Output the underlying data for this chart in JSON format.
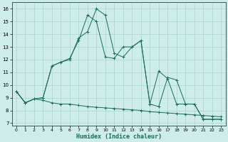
{
  "title": "",
  "xlabel": "Humidex (Indice chaleur)",
  "ylabel": "",
  "bg_color": "#ceecea",
  "grid_color": "#aad4d0",
  "line_color": "#1a6b5a",
  "xlim": [
    -0.5,
    23.5
  ],
  "ylim": [
    6.8,
    16.5
  ],
  "yticks": [
    7,
    8,
    9,
    10,
    11,
    12,
    13,
    14,
    15,
    16
  ],
  "xticks": [
    0,
    1,
    2,
    3,
    4,
    5,
    6,
    7,
    8,
    9,
    10,
    11,
    12,
    13,
    14,
    15,
    16,
    17,
    18,
    19,
    20,
    21,
    22,
    23
  ],
  "series1_x": [
    0,
    1,
    2,
    3,
    4,
    5,
    6,
    7,
    8,
    9,
    10,
    11,
    12,
    13,
    14,
    15,
    16,
    17,
    18,
    19,
    20,
    21,
    22,
    23
  ],
  "series1_y": [
    9.5,
    8.6,
    8.9,
    8.8,
    8.6,
    8.5,
    8.5,
    8.4,
    8.3,
    8.25,
    8.2,
    8.15,
    8.1,
    8.05,
    8.0,
    7.9,
    7.85,
    7.8,
    7.75,
    7.7,
    7.65,
    7.6,
    7.55,
    7.5
  ],
  "series2_x": [
    0,
    1,
    2,
    3,
    4,
    5,
    6,
    7,
    8,
    9,
    10,
    11,
    12,
    13,
    14,
    15,
    16,
    17,
    18,
    19,
    20,
    21,
    22,
    23
  ],
  "series2_y": [
    9.5,
    8.6,
    8.9,
    9.0,
    11.5,
    11.8,
    12.1,
    13.5,
    15.5,
    15.0,
    12.2,
    12.1,
    13.0,
    13.0,
    13.5,
    8.5,
    8.3,
    10.6,
    10.4,
    8.5,
    8.5,
    7.3,
    7.3,
    7.3
  ],
  "series3_x": [
    0,
    1,
    2,
    3,
    4,
    5,
    6,
    7,
    8,
    9,
    10,
    11,
    12,
    13,
    14,
    15,
    16,
    17,
    18,
    19,
    20,
    21,
    22,
    23
  ],
  "series3_y": [
    9.5,
    8.6,
    8.9,
    9.0,
    11.5,
    11.8,
    12.0,
    13.7,
    14.2,
    16.0,
    15.5,
    12.5,
    12.2,
    13.0,
    13.5,
    8.5,
    11.1,
    10.5,
    8.5,
    8.5,
    8.5,
    7.3,
    7.3,
    7.3
  ],
  "marker": "+"
}
